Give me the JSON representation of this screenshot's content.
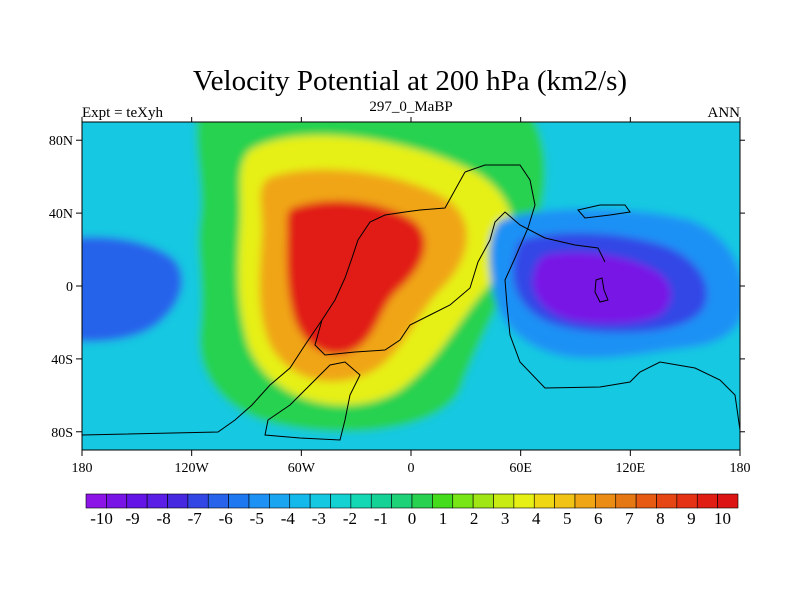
{
  "title": "Velocity Potential at 200 hPa (km2/s)",
  "subtitle_left": "Expt = teXyh",
  "subtitle_center": "297_0_MaBP",
  "subtitle_right": "ANN",
  "map": {
    "lon_range": [
      -180,
      180
    ],
    "lat_range": [
      -90,
      90
    ],
    "x_ticks": [
      {
        "value": -180,
        "label": "180"
      },
      {
        "value": -120,
        "label": "120W"
      },
      {
        "value": -60,
        "label": "60W"
      },
      {
        "value": 0,
        "label": "0"
      },
      {
        "value": 60,
        "label": "60E"
      },
      {
        "value": 120,
        "label": "120E"
      },
      {
        "value": 180,
        "label": "180"
      }
    ],
    "y_ticks": [
      {
        "value": 80,
        "label": "80N"
      },
      {
        "value": 40,
        "label": "40N"
      },
      {
        "value": 0,
        "label": "0"
      },
      {
        "value": -40,
        "label": "40S"
      },
      {
        "value": -80,
        "label": "80S"
      }
    ],
    "field_features": [
      {
        "name": "maximum",
        "lon": -45,
        "lat": 15,
        "value": 10
      },
      {
        "name": "minimum",
        "lon": 100,
        "lat": 0,
        "value": -10
      }
    ]
  },
  "colorbar": {
    "labels": [
      "-10",
      "-9",
      "-8",
      "-7",
      "-6",
      "-5",
      "-4",
      "-3",
      "-2",
      "-1",
      "0",
      "1",
      "2",
      "3",
      "4",
      "5",
      "6",
      "7",
      "8",
      "9",
      "10"
    ],
    "colors": [
      "#8c14e6",
      "#7814e6",
      "#6414e6",
      "#5a1ee6",
      "#4628e1",
      "#3246e6",
      "#2864eb",
      "#1e78f0",
      "#1e91f5",
      "#19a5f0",
      "#14b9eb",
      "#14c8e1",
      "#14d2d2",
      "#14d7b4",
      "#14d296",
      "#1ed278",
      "#28d250",
      "#46dc1e",
      "#78e614",
      "#a0e614",
      "#c8eb14",
      "#e6f014",
      "#f0d714",
      "#f0c314",
      "#f0a514",
      "#eb8c14",
      "#e67814",
      "#e65a14",
      "#e64614",
      "#e63214",
      "#e11e14",
      "#dc1414"
    ]
  }
}
